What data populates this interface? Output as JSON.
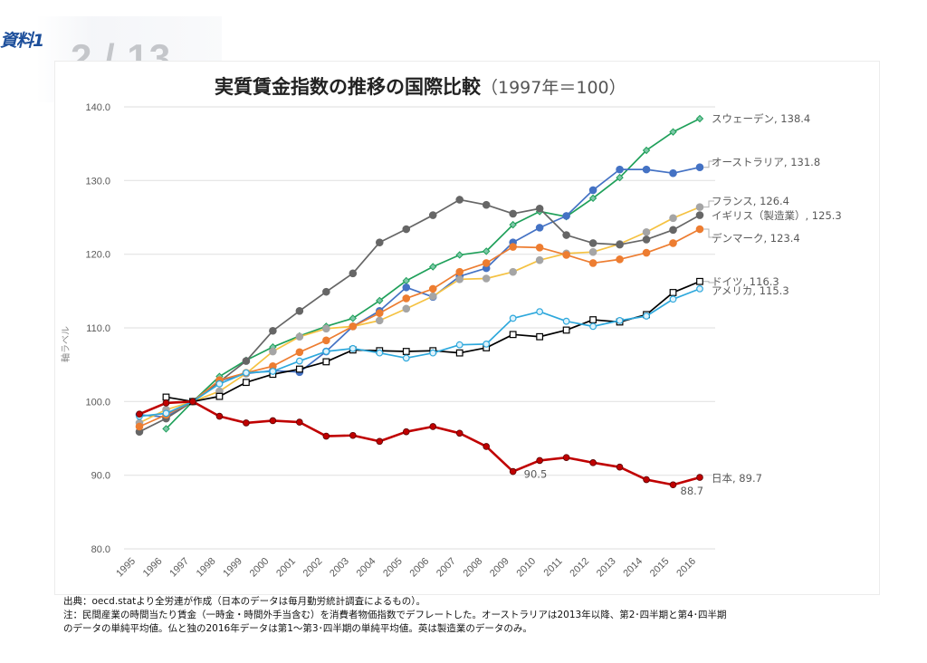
{
  "header": {
    "badge": "資料1",
    "page_indicator": "2 / 13"
  },
  "chart_data": {
    "type": "line",
    "title": "実質賃金指数の推移の国際比較",
    "subtitle": "（1997年＝100）",
    "xlabel": "",
    "ylabel": "軸ラベル",
    "ylim": [
      80,
      140
    ],
    "yticks": [
      "80.0",
      "90.0",
      "100.0",
      "110.0",
      "120.0",
      "130.0",
      "140.0"
    ],
    "ytick_values": [
      80,
      90,
      100,
      110,
      120,
      130,
      140
    ],
    "grid": true,
    "legend": "end-of-line labels (right)",
    "x": [
      "1995",
      "1996",
      "1997",
      "1998",
      "1999",
      "2000",
      "2001",
      "2002",
      "2003",
      "2004",
      "2005",
      "2006",
      "2007",
      "2008",
      "2009",
      "2010",
      "2011",
      "2012",
      "2013",
      "2014",
      "2015",
      "2016"
    ],
    "series": [
      {
        "name": "スウェーデン",
        "label": "スウェーデン, 138.4",
        "color": "#1fa05a",
        "marker": "diamond-open",
        "values": [
          null,
          96.3,
          100.0,
          103.4,
          105.6,
          107.4,
          108.9,
          110.2,
          111.3,
          113.7,
          116.4,
          118.3,
          119.9,
          120.4,
          124.0,
          125.8,
          125.1,
          127.6,
          130.4,
          134.1,
          136.6,
          138.4
        ]
      },
      {
        "name": "オーストラリア",
        "label": "オーストラリア, 131.8",
        "color": "#4472c4",
        "marker": "circle",
        "values": [
          98.2,
          97.9,
          100.0,
          102.8,
          103.8,
          104.2,
          104.0,
          106.8,
          110.2,
          112.3,
          115.5,
          114.2,
          117.0,
          118.1,
          121.6,
          123.6,
          125.2,
          128.7,
          131.5,
          131.5,
          131.0,
          131.8
        ]
      },
      {
        "name": "フランス",
        "label": "フランス, 126.4",
        "color": "#f5c242",
        "marker": "circle-gray",
        "values": [
          97.1,
          98.9,
          100.0,
          101.4,
          103.8,
          106.8,
          108.8,
          109.9,
          110.2,
          111.0,
          112.6,
          114.3,
          116.6,
          116.7,
          117.6,
          119.2,
          120.1,
          120.3,
          121.4,
          123.0,
          124.9,
          126.4
        ]
      },
      {
        "name": "イギリス（製造業）",
        "label": "イギリス（製造業）, 125.3",
        "color": "#666666",
        "marker": "circle",
        "values": [
          95.9,
          97.7,
          100.0,
          102.7,
          105.5,
          109.6,
          112.3,
          114.9,
          117.4,
          121.6,
          123.4,
          125.3,
          127.4,
          126.7,
          125.5,
          126.2,
          122.6,
          121.5,
          121.3,
          122.0,
          123.3,
          125.3
        ]
      },
      {
        "name": "デンマーク",
        "label": "デンマーク, 123.4",
        "color": "#ed7d31",
        "marker": "circle",
        "values": [
          96.6,
          98.2,
          100.0,
          102.9,
          103.9,
          104.8,
          106.7,
          108.3,
          110.2,
          112.0,
          114.0,
          115.3,
          117.6,
          118.8,
          121.0,
          120.9,
          119.9,
          118.8,
          119.3,
          120.2,
          121.5,
          123.4
        ]
      },
      {
        "name": "ドイツ",
        "label": "ドイツ, 116.3",
        "color": "#000000",
        "marker": "square-open",
        "values": [
          null,
          100.6,
          100.0,
          100.7,
          102.6,
          103.7,
          104.4,
          105.4,
          107.0,
          106.9,
          106.8,
          106.9,
          106.6,
          107.3,
          109.1,
          108.8,
          109.7,
          111.1,
          110.8,
          111.8,
          114.8,
          116.3
        ]
      },
      {
        "name": "アメリカ",
        "label": "アメリカ, 115.3",
        "color": "#2ea8dc",
        "marker": "circle-open",
        "values": [
          98.0,
          98.4,
          100.0,
          102.4,
          103.9,
          104.1,
          105.5,
          106.8,
          107.2,
          106.6,
          105.9,
          106.6,
          107.7,
          107.8,
          111.3,
          112.2,
          110.9,
          110.2,
          111.0,
          111.6,
          113.9,
          115.3
        ]
      },
      {
        "name": "日本",
        "label": "日本, 89.7",
        "color": "#c00000",
        "marker": "circle-dark",
        "values": [
          98.3,
          99.8,
          100.0,
          98.0,
          97.1,
          97.4,
          97.2,
          95.3,
          95.4,
          94.6,
          95.9,
          96.6,
          95.7,
          93.9,
          90.5,
          92.0,
          92.4,
          91.7,
          91.1,
          89.4,
          88.7,
          89.7
        ]
      }
    ],
    "annotations": [
      {
        "series": "日本",
        "year": "2009",
        "text": "90.5"
      },
      {
        "series": "日本",
        "year": "2015",
        "text": "88.7"
      }
    ]
  },
  "notes": {
    "source": "出典：oecd.statより全労連が作成（日本のデータは毎月勤労統計調査によるもの）。",
    "note_line1": "注：民間産業の時間当たり賃金（一時金・時間外手当含む）を消費者物価指数でデフレートした。オーストラリアは2013年以降、第2･四半期と第4･四半期",
    "note_line2": "のデータの単純平均値。仏と独の2016年データは第1～第3･四半期の単純平均値。英は製造業のデータのみ。"
  }
}
